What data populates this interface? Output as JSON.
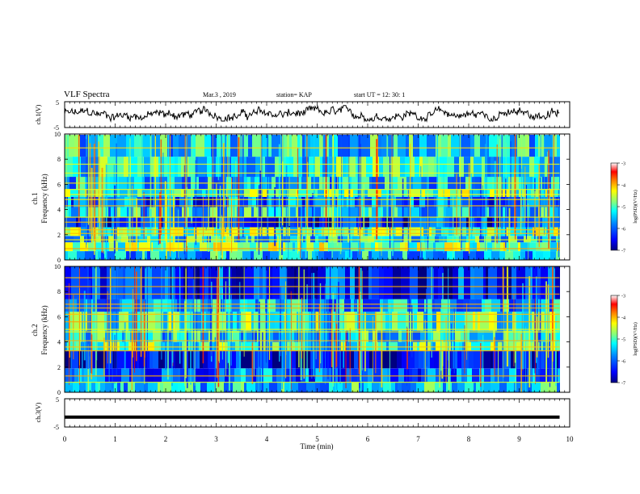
{
  "header": {
    "title": "VLF Spectra",
    "date": "Mar.3  , 2019",
    "station": "station= KAP",
    "start_time": "start  UT =   12: 30: 1"
  },
  "colors": {
    "background": "#ffffff",
    "colormap": [
      "#00007f",
      "#0000ff",
      "#0080ff",
      "#00ffff",
      "#80ff80",
      "#ffff00",
      "#ff8000",
      "#ff0000",
      "#ffffff"
    ]
  },
  "chart_data": [
    {
      "type": "line",
      "panel": "ch1-waveform",
      "ylabel": "ch.1(V)",
      "ytick_labels": [
        "5",
        "-5"
      ],
      "ylim": [
        -5,
        5
      ],
      "xlim": [
        0,
        10
      ],
      "x_end": 9.8,
      "series": [
        {
          "description": "noisy waveform fluctuating around 0 V",
          "amplitude_range": [
            -2.5,
            3.5
          ]
        }
      ]
    },
    {
      "type": "heatmap",
      "panel": "ch1-spectrogram",
      "ylabel": "ch.1",
      "ylabel2": "Frequency (kHz)",
      "yticks": [
        0,
        2,
        4,
        6,
        8,
        10
      ],
      "ytick_labels": [
        "0",
        "2",
        "4",
        "6",
        "8",
        "10"
      ],
      "ylim": [
        0,
        10
      ],
      "xlim": [
        0,
        10
      ],
      "colorbar": {
        "label": "log(PSD)(V²/Hz)",
        "ticks": [
          -3,
          -4,
          -5,
          -6,
          -7
        ],
        "tick_labels": [
          "-3",
          "-4",
          "-5",
          "-6",
          "-7"
        ],
        "range": [
          -7,
          -3
        ]
      },
      "bands": [
        {
          "from": 0.0,
          "to": 0.7,
          "level": -5.5
        },
        {
          "from": 0.7,
          "to": 1.4,
          "level": -4.7
        },
        {
          "from": 1.4,
          "to": 1.9,
          "level": -5.3
        },
        {
          "from": 1.9,
          "to": 2.6,
          "level": -4.9
        },
        {
          "from": 2.6,
          "to": 3.4,
          "level": -6.3
        },
        {
          "from": 3.4,
          "to": 4.2,
          "level": -5.4
        },
        {
          "from": 4.2,
          "to": 5.0,
          "level": -6.0
        },
        {
          "from": 5.0,
          "to": 5.6,
          "level": -4.9
        },
        {
          "from": 5.6,
          "to": 6.6,
          "level": -5.5
        },
        {
          "from": 6.6,
          "to": 8.2,
          "level": -5.2
        },
        {
          "from": 8.2,
          "to": 10.0,
          "level": -5.4
        }
      ],
      "lines_khz": [
        0.9,
        1.6,
        2.1,
        2.4,
        3.0,
        3.4,
        4.3,
        4.8,
        5.2,
        5.6,
        6.1,
        6.9,
        7.6,
        8.9
      ]
    },
    {
      "type": "heatmap",
      "panel": "ch2-spectrogram",
      "ylabel": "ch.2",
      "ylabel2": "Frequency (kHz)",
      "yticks": [
        0,
        2,
        4,
        6,
        8,
        10
      ],
      "ytick_labels": [
        "0",
        "2",
        "4",
        "6",
        "8",
        "10"
      ],
      "ylim": [
        0,
        10
      ],
      "xlim": [
        0,
        10
      ],
      "colorbar": {
        "label": "log(PSD)(V²/Hz)",
        "ticks": [
          -3,
          -4,
          -5,
          -6,
          -7
        ],
        "tick_labels": [
          "-3",
          "-4",
          "-5",
          "-6",
          "-7"
        ],
        "range": [
          -7,
          -3
        ]
      },
      "bands": [
        {
          "from": 0.0,
          "to": 0.8,
          "level": -5.4
        },
        {
          "from": 0.8,
          "to": 1.9,
          "level": -5.9
        },
        {
          "from": 1.9,
          "to": 3.3,
          "level": -6.6
        },
        {
          "from": 3.3,
          "to": 4.0,
          "level": -5.0
        },
        {
          "from": 4.0,
          "to": 4.9,
          "level": -5.4
        },
        {
          "from": 4.9,
          "to": 6.4,
          "level": -5.0
        },
        {
          "from": 6.4,
          "to": 7.4,
          "level": -5.6
        },
        {
          "from": 7.4,
          "to": 10.0,
          "level": -6.3
        }
      ],
      "lines_khz": [
        0.8,
        1.3,
        3.3,
        3.6,
        4.1,
        4.8,
        5.0,
        5.6,
        6.2,
        6.7,
        7.0,
        7.8,
        8.4,
        9.1
      ]
    },
    {
      "type": "line",
      "panel": "ch3-waveform",
      "ylabel": "ch.3(V)",
      "ytick_labels": [
        "5",
        "-5"
      ],
      "ylim": [
        -5,
        5
      ],
      "xlim": [
        0,
        10
      ],
      "x_end": 9.8,
      "series": [
        {
          "description": "flat signal",
          "level": -1.5
        }
      ]
    }
  ],
  "xaxis": {
    "label": "Time (min)",
    "ticks": [
      0,
      1,
      2,
      3,
      4,
      5,
      6,
      7,
      8,
      9,
      10
    ],
    "tick_labels": [
      "0",
      "1",
      "2",
      "3",
      "4",
      "5",
      "6",
      "7",
      "8",
      "9",
      "10"
    ]
  }
}
